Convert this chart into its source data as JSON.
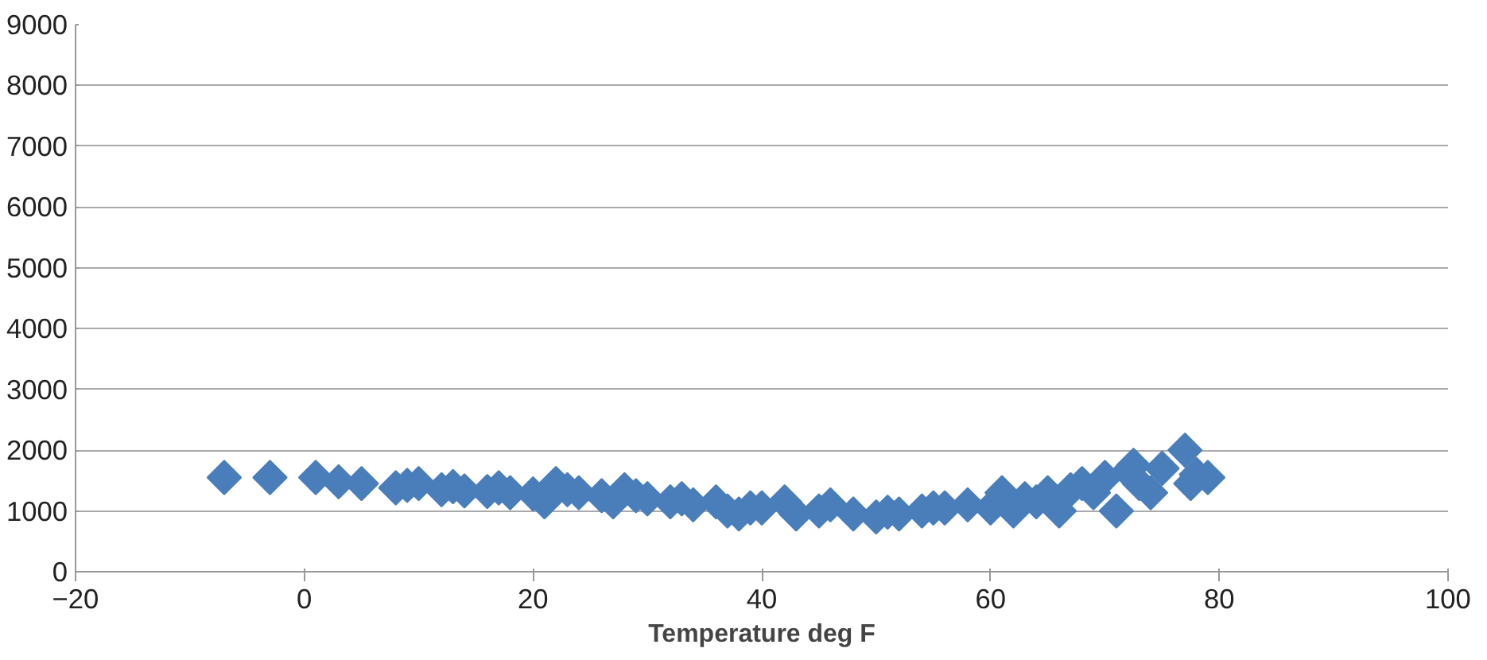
{
  "chart_data": {
    "type": "scatter",
    "xlabel": "Temperature deg F",
    "marker": "diamond",
    "grid": "y",
    "x": [
      -7,
      -3,
      1,
      3,
      5,
      8,
      9,
      10,
      12,
      13,
      14,
      16,
      17,
      18,
      20,
      21,
      22,
      23,
      24,
      26,
      27,
      28,
      29,
      30,
      32,
      33,
      34,
      36,
      37,
      38,
      39,
      40,
      42,
      43,
      45,
      46,
      48,
      50,
      51,
      52,
      54,
      55,
      56,
      58,
      60,
      61,
      62,
      63,
      64,
      65,
      66,
      67,
      68,
      69,
      70,
      71,
      72,
      72.5,
      73,
      74,
      75,
      77,
      77.5,
      78,
      79
    ],
    "series": [
      {
        "color": "#4a7ebb",
        "values": [
          1550,
          1550,
          1550,
          1480,
          1450,
          1380,
          1420,
          1450,
          1350,
          1400,
          1330,
          1320,
          1380,
          1300,
          1280,
          1150,
          1450,
          1350,
          1300,
          1250,
          1150,
          1350,
          1250,
          1200,
          1150,
          1200,
          1100,
          1150,
          1000,
          950,
          1050,
          1050,
          1150,
          950,
          1000,
          1100,
          950,
          900,
          980,
          950,
          1000,
          1050,
          1050,
          1100,
          1050,
          1300,
          1000,
          1200,
          1150,
          1300,
          1000,
          1350,
          1450,
          1300,
          1550,
          1000,
          1650,
          1750,
          1450,
          1300,
          1700,
          2000,
          1450,
          1600,
          1550
        ]
      }
    ],
    "xlim": [
      -20,
      100
    ],
    "xticks": [
      -20,
      0,
      20,
      40,
      60,
      80,
      100
    ],
    "ylim": [
      0,
      9000
    ],
    "yticks": [
      0,
      1000,
      2000,
      3000,
      4000,
      5000,
      6000,
      7000,
      8000,
      9000
    ]
  }
}
